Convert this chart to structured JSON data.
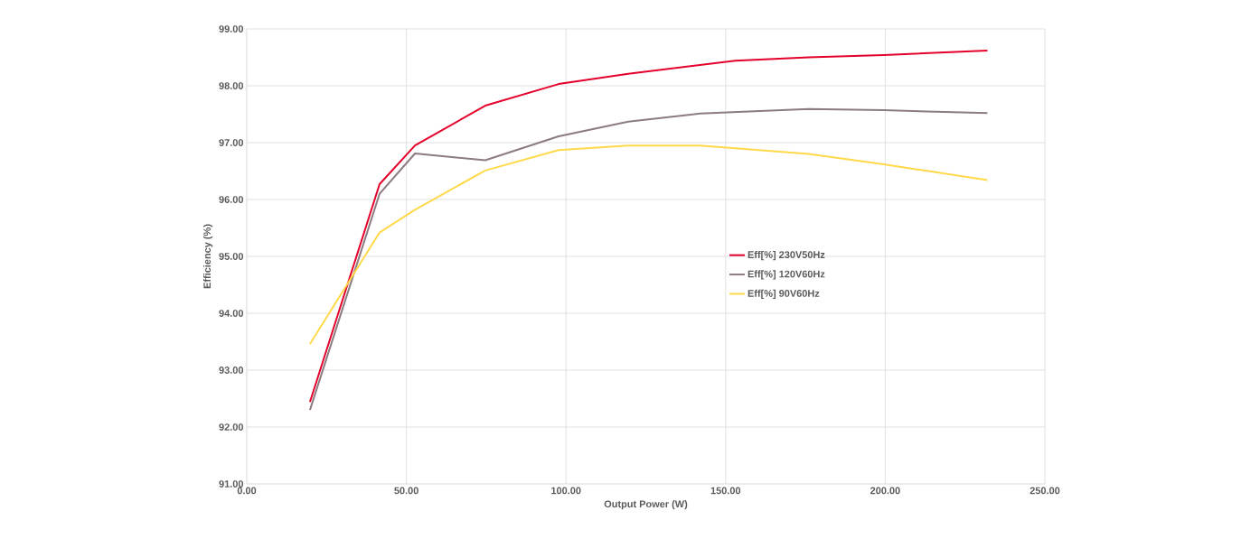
{
  "chart_data": {
    "type": "line",
    "xlabel": "Output Power (W)",
    "ylabel": "Efficiency (%)",
    "xlim": [
      0,
      250
    ],
    "ylim": [
      91,
      99
    ],
    "xticks": [
      {
        "value": 0,
        "label": "0.00"
      },
      {
        "value": 50,
        "label": "50.00"
      },
      {
        "value": 100,
        "label": "100.00"
      },
      {
        "value": 150,
        "label": "150.00"
      },
      {
        "value": 200,
        "label": "200.00"
      },
      {
        "value": 250,
        "label": "250.00"
      }
    ],
    "yticks": [
      {
        "value": 91,
        "label": "91.00"
      },
      {
        "value": 92,
        "label": "92.00"
      },
      {
        "value": 93,
        "label": "93.00"
      },
      {
        "value": 94,
        "label": "94.00"
      },
      {
        "value": 95,
        "label": "95.00"
      },
      {
        "value": 96,
        "label": "96.00"
      },
      {
        "value": 97,
        "label": "97.00"
      },
      {
        "value": 98,
        "label": "98.00"
      },
      {
        "value": 99,
        "label": "99.00"
      }
    ],
    "grid": true,
    "legend": "right",
    "marker": "none",
    "line_style": "solid",
    "series": [
      {
        "name": "Eff[%] 230V50Hz",
        "color": "#e4002b",
        "x": [
          19.8,
          41.6,
          52.7,
          74.7,
          97.7,
          119.5,
          153,
          176,
          199.5,
          232
        ],
        "values": [
          92.44,
          96.27,
          96.95,
          97.65,
          98.03,
          98.21,
          98.44,
          98.5,
          98.54,
          98.62
        ]
      },
      {
        "name": "Eff[%] 120V60Hz",
        "color": "#8c7b80",
        "x": [
          19.8,
          41.6,
          52.7,
          74.7,
          97.7,
          119.5,
          142,
          176,
          199.5,
          232
        ],
        "values": [
          92.3,
          96.1,
          96.81,
          96.69,
          97.11,
          97.37,
          97.51,
          97.59,
          97.57,
          97.52
        ]
      },
      {
        "name": "Eff[%] 90V60Hz",
        "color": "#ffd94a",
        "x": [
          19.8,
          41.6,
          52.7,
          74.7,
          97.7,
          119.5,
          142,
          176,
          199.5,
          232
        ],
        "values": [
          93.46,
          95.42,
          95.82,
          96.51,
          96.87,
          96.95,
          96.95,
          96.8,
          96.62,
          96.34
        ]
      }
    ]
  }
}
